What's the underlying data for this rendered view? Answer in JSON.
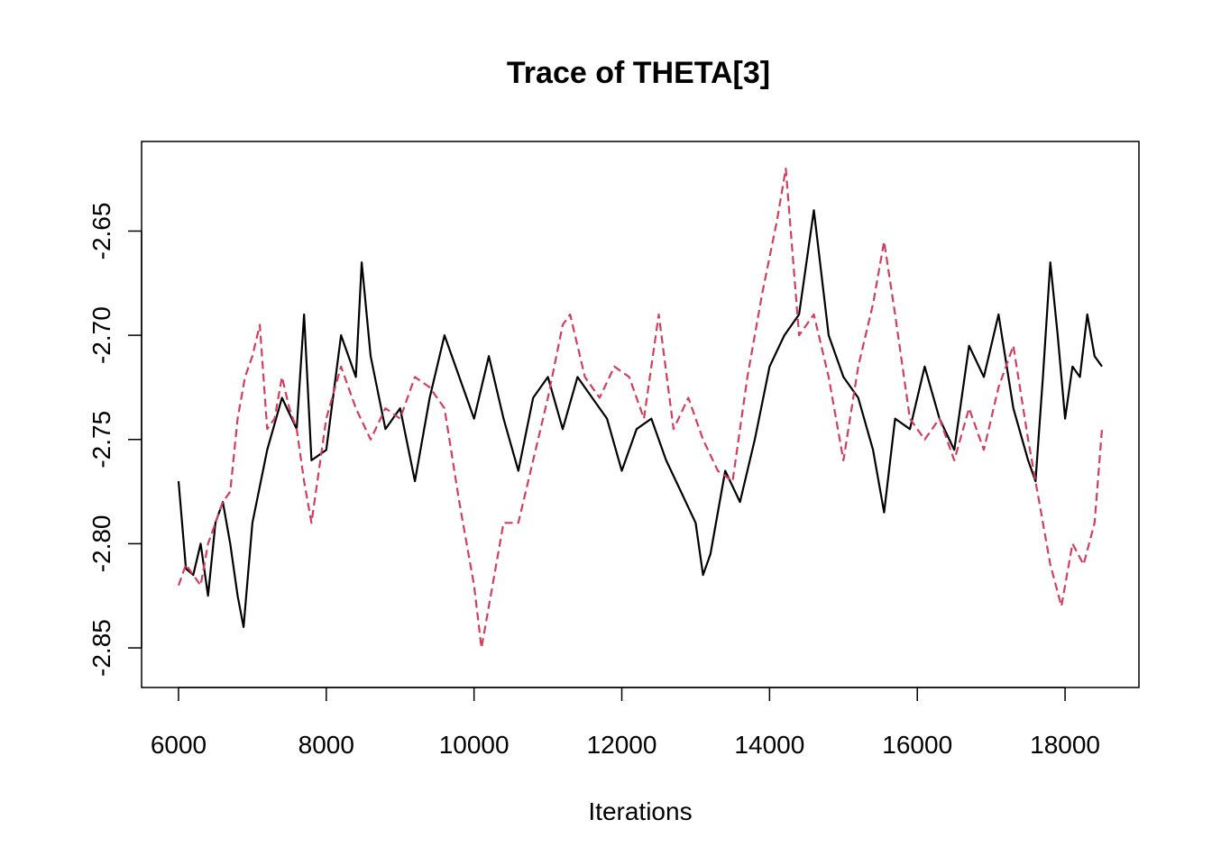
{
  "chart_data": {
    "type": "line",
    "title": "Trace of THETA[3]",
    "xlabel": "Iterations",
    "ylabel": "",
    "xlim": [
      5500,
      19000
    ],
    "ylim": [
      2.869,
      2.607
    ],
    "y_inverted": true,
    "x_ticks": [
      6000,
      8000,
      10000,
      12000,
      14000,
      16000,
      18000
    ],
    "x_tick_labels": [
      "6000",
      "8000",
      "10000",
      "12000",
      "14000",
      "16000",
      "18000"
    ],
    "y_ticks": [
      2.65,
      2.7,
      2.75,
      2.8,
      2.85
    ],
    "y_tick_labels": [
      "-2.65",
      "-2.70",
      "-2.75",
      "-2.80",
      "-2.85"
    ],
    "grid": false,
    "series": [
      {
        "color": "#000000",
        "dash": "solid",
        "x": [
          6000,
          6100,
          6200,
          6300,
          6400,
          6500,
          6600,
          6700,
          6800,
          6880,
          7000,
          7200,
          7400,
          7600,
          7700,
          7800,
          8000,
          8200,
          8400,
          8480,
          8600,
          8800,
          9000,
          9200,
          9400,
          9600,
          9800,
          10000,
          10200,
          10400,
          10600,
          10800,
          11000,
          11200,
          11400,
          11600,
          11800,
          12000,
          12200,
          12400,
          12600,
          12800,
          13000,
          13100,
          13200,
          13400,
          13600,
          13800,
          14000,
          14200,
          14400,
          14600,
          14800,
          15000,
          15200,
          15400,
          15550,
          15700,
          15900,
          16100,
          16300,
          16500,
          16700,
          16900,
          17100,
          17300,
          17500,
          17600,
          17700,
          17800,
          17900,
          18000,
          18100,
          18200,
          18300,
          18400,
          18500
        ],
        "values": [
          2.77,
          2.812,
          2.815,
          2.8,
          2.825,
          2.79,
          2.78,
          2.8,
          2.825,
          2.84,
          2.79,
          2.755,
          2.73,
          2.745,
          2.69,
          2.76,
          2.755,
          2.7,
          2.72,
          2.665,
          2.71,
          2.745,
          2.735,
          2.77,
          2.73,
          2.7,
          2.72,
          2.74,
          2.71,
          2.74,
          2.765,
          2.73,
          2.72,
          2.745,
          2.72,
          2.73,
          2.74,
          2.765,
          2.745,
          2.74,
          2.76,
          2.775,
          2.79,
          2.815,
          2.805,
          2.765,
          2.78,
          2.75,
          2.715,
          2.7,
          2.69,
          2.64,
          2.7,
          2.72,
          2.73,
          2.755,
          2.785,
          2.74,
          2.745,
          2.715,
          2.74,
          2.755,
          2.705,
          2.72,
          2.69,
          2.735,
          2.76,
          2.77,
          2.72,
          2.665,
          2.7,
          2.74,
          2.715,
          2.72,
          2.69,
          2.71,
          2.715
        ]
      },
      {
        "color": "#d03f5e",
        "dash": "dashed",
        "x": [
          6000,
          6100,
          6200,
          6300,
          6400,
          6500,
          6600,
          6700,
          6800,
          6900,
          7000,
          7100,
          7200,
          7300,
          7400,
          7500,
          7600,
          7700,
          7800,
          8000,
          8200,
          8400,
          8600,
          8800,
          9000,
          9200,
          9400,
          9600,
          9800,
          10000,
          10100,
          10200,
          10400,
          10600,
          10800,
          11000,
          11200,
          11300,
          11500,
          11700,
          11900,
          12100,
          12300,
          12500,
          12700,
          12900,
          13100,
          13300,
          13500,
          13700,
          13900,
          14100,
          14220,
          14400,
          14600,
          14800,
          15000,
          15200,
          15400,
          15550,
          15700,
          15900,
          16100,
          16300,
          16500,
          16700,
          16900,
          17100,
          17300,
          17500,
          17650,
          17800,
          17950,
          18100,
          18250,
          18400,
          18500
        ],
        "values": [
          2.82,
          2.81,
          2.815,
          2.82,
          2.8,
          2.79,
          2.78,
          2.775,
          2.74,
          2.72,
          2.71,
          2.695,
          2.745,
          2.74,
          2.72,
          2.735,
          2.745,
          2.77,
          2.79,
          2.74,
          2.715,
          2.735,
          2.75,
          2.735,
          2.74,
          2.72,
          2.725,
          2.735,
          2.78,
          2.82,
          2.85,
          2.83,
          2.79,
          2.79,
          2.76,
          2.73,
          2.695,
          2.69,
          2.72,
          2.73,
          2.715,
          2.72,
          2.74,
          2.69,
          2.745,
          2.73,
          2.75,
          2.765,
          2.77,
          2.72,
          2.68,
          2.645,
          2.62,
          2.7,
          2.69,
          2.72,
          2.76,
          2.715,
          2.685,
          2.655,
          2.69,
          2.74,
          2.75,
          2.74,
          2.76,
          2.735,
          2.755,
          2.725,
          2.705,
          2.75,
          2.78,
          2.81,
          2.83,
          2.8,
          2.81,
          2.79,
          2.745
        ]
      }
    ]
  }
}
